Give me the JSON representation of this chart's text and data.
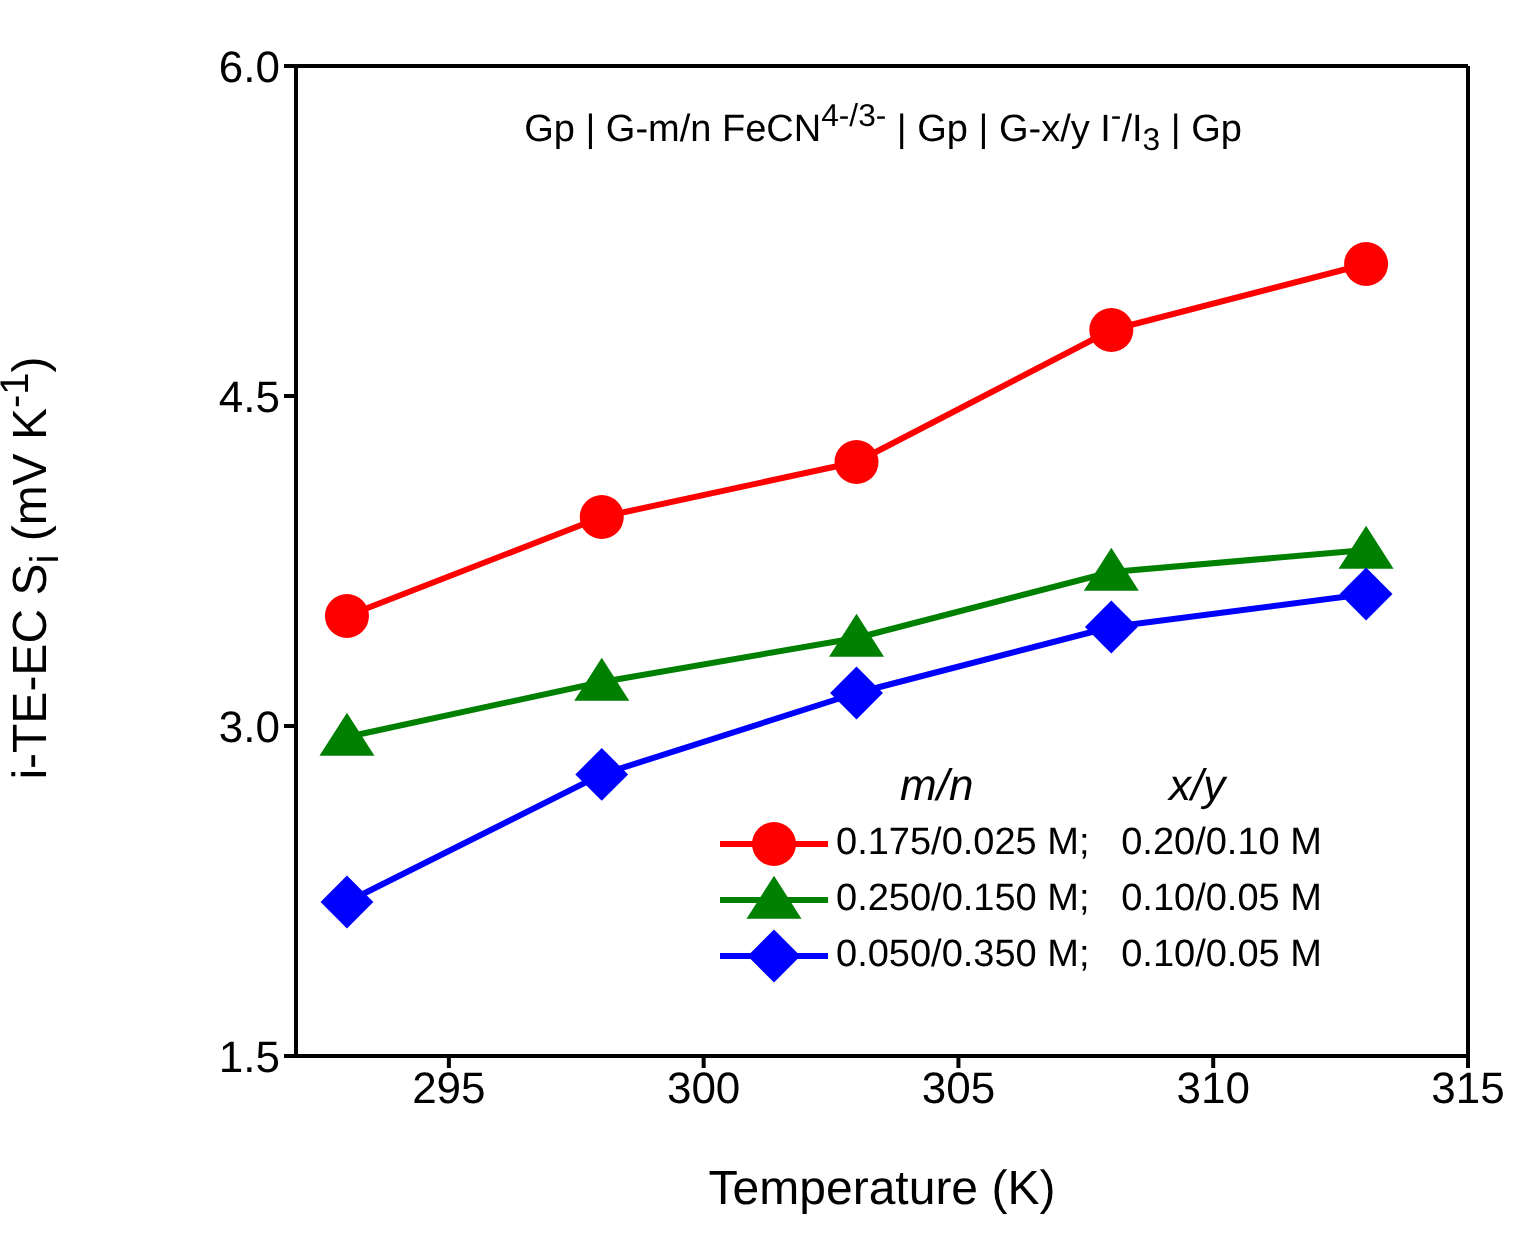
{
  "chart_data": {
    "type": "line",
    "title": "Gp | G-m/n FeCN$^{4-/3-}$ | Gp | G-x/y I$^{-}$/I$_{3}$ | Gp",
    "xlabel": "Temperature (K)",
    "ylabel": "i-TE-EC S$_{i}$ (mV K$^{-1}$)",
    "legend_title": "m/n                x/y",
    "x": [
      293,
      298,
      303,
      308,
      313
    ],
    "series": [
      {
        "name": "0.175/0.025 M;   0.20/0.10 M",
        "color": "#ff0000",
        "marker": "circle",
        "values": [
          3.5,
          3.95,
          4.2,
          4.8,
          5.1
        ]
      },
      {
        "name": "0.250/0.150 M;   0.10/0.05 M",
        "color": "#008000",
        "marker": "triangle",
        "values": [
          2.95,
          3.2,
          3.4,
          3.7,
          3.8
        ]
      },
      {
        "name": "0.050/0.350 M;   0.10/0.05 M",
        "color": "#0000ff",
        "marker": "diamond",
        "values": [
          2.2,
          2.78,
          3.15,
          3.45,
          3.6
        ]
      }
    ],
    "xlim": [
      292,
      315
    ],
    "xticks": [
      295,
      300,
      305,
      310,
      315
    ],
    "ylim": [
      1.5,
      6.0
    ],
    "yticks": [
      {
        "value": 1.5,
        "label": "1.5"
      },
      {
        "value": 3.0,
        "label": "3.0"
      },
      {
        "value": 4.5,
        "label": "4.5"
      },
      {
        "value": 6.0,
        "label": "6.0"
      }
    ],
    "grid": false,
    "legend": "bottom right",
    "line_style": "solid"
  }
}
